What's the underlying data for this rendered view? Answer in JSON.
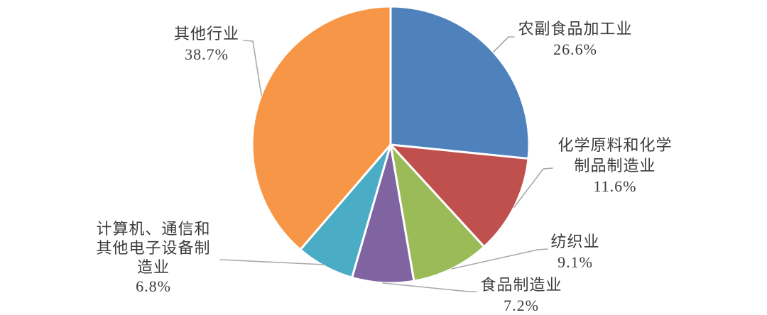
{
  "page": {
    "background_color": "#ffffff",
    "text_color": "#3c3c3c"
  },
  "chart_data": {
    "type": "pie",
    "title": "",
    "direction": "clockwise",
    "start_angle_deg": 0,
    "slice_border_color": "#ffffff",
    "leader_line_color": "#a8a8a8",
    "label_text_color": "#3c3c3c",
    "slices": [
      {
        "label": "农副食品加工业",
        "value": 26.6,
        "pct_text": "26.6%",
        "color": "#4F81BD"
      },
      {
        "label": "化学原料和化学制品制造业",
        "value": 11.6,
        "pct_text": "11.6%",
        "color": "#C0504D"
      },
      {
        "label": "纺织业",
        "value": 9.1,
        "pct_text": "9.1%",
        "color": "#9BBB59"
      },
      {
        "label": "食品制造业",
        "value": 7.2,
        "pct_text": "7.2%",
        "color": "#8064A2"
      },
      {
        "label": "计算机、通信和其他电子设备制造业",
        "value": 6.8,
        "pct_text": "6.8%",
        "color": "#4BACC6"
      },
      {
        "label": "其他行业",
        "value": 38.7,
        "pct_text": "38.7%",
        "color": "#F79646"
      }
    ]
  },
  "callouts": [
    {
      "id": "nongfu",
      "lines": [
        "农副食品加工业",
        "26.6%"
      ]
    },
    {
      "id": "huaxue",
      "lines": [
        "化学原料和化学",
        "制品制造业",
        "11.6%"
      ]
    },
    {
      "id": "fangzhi",
      "lines": [
        "纺织业",
        "9.1%"
      ]
    },
    {
      "id": "shipin",
      "lines": [
        "食品制造业",
        "7.2%"
      ]
    },
    {
      "id": "jisuanji",
      "lines": [
        "计算机、通信和",
        "其他电子设备制",
        "造业",
        "6.8%"
      ]
    },
    {
      "id": "qita",
      "lines": [
        "其他行业",
        "38.7%"
      ]
    }
  ]
}
